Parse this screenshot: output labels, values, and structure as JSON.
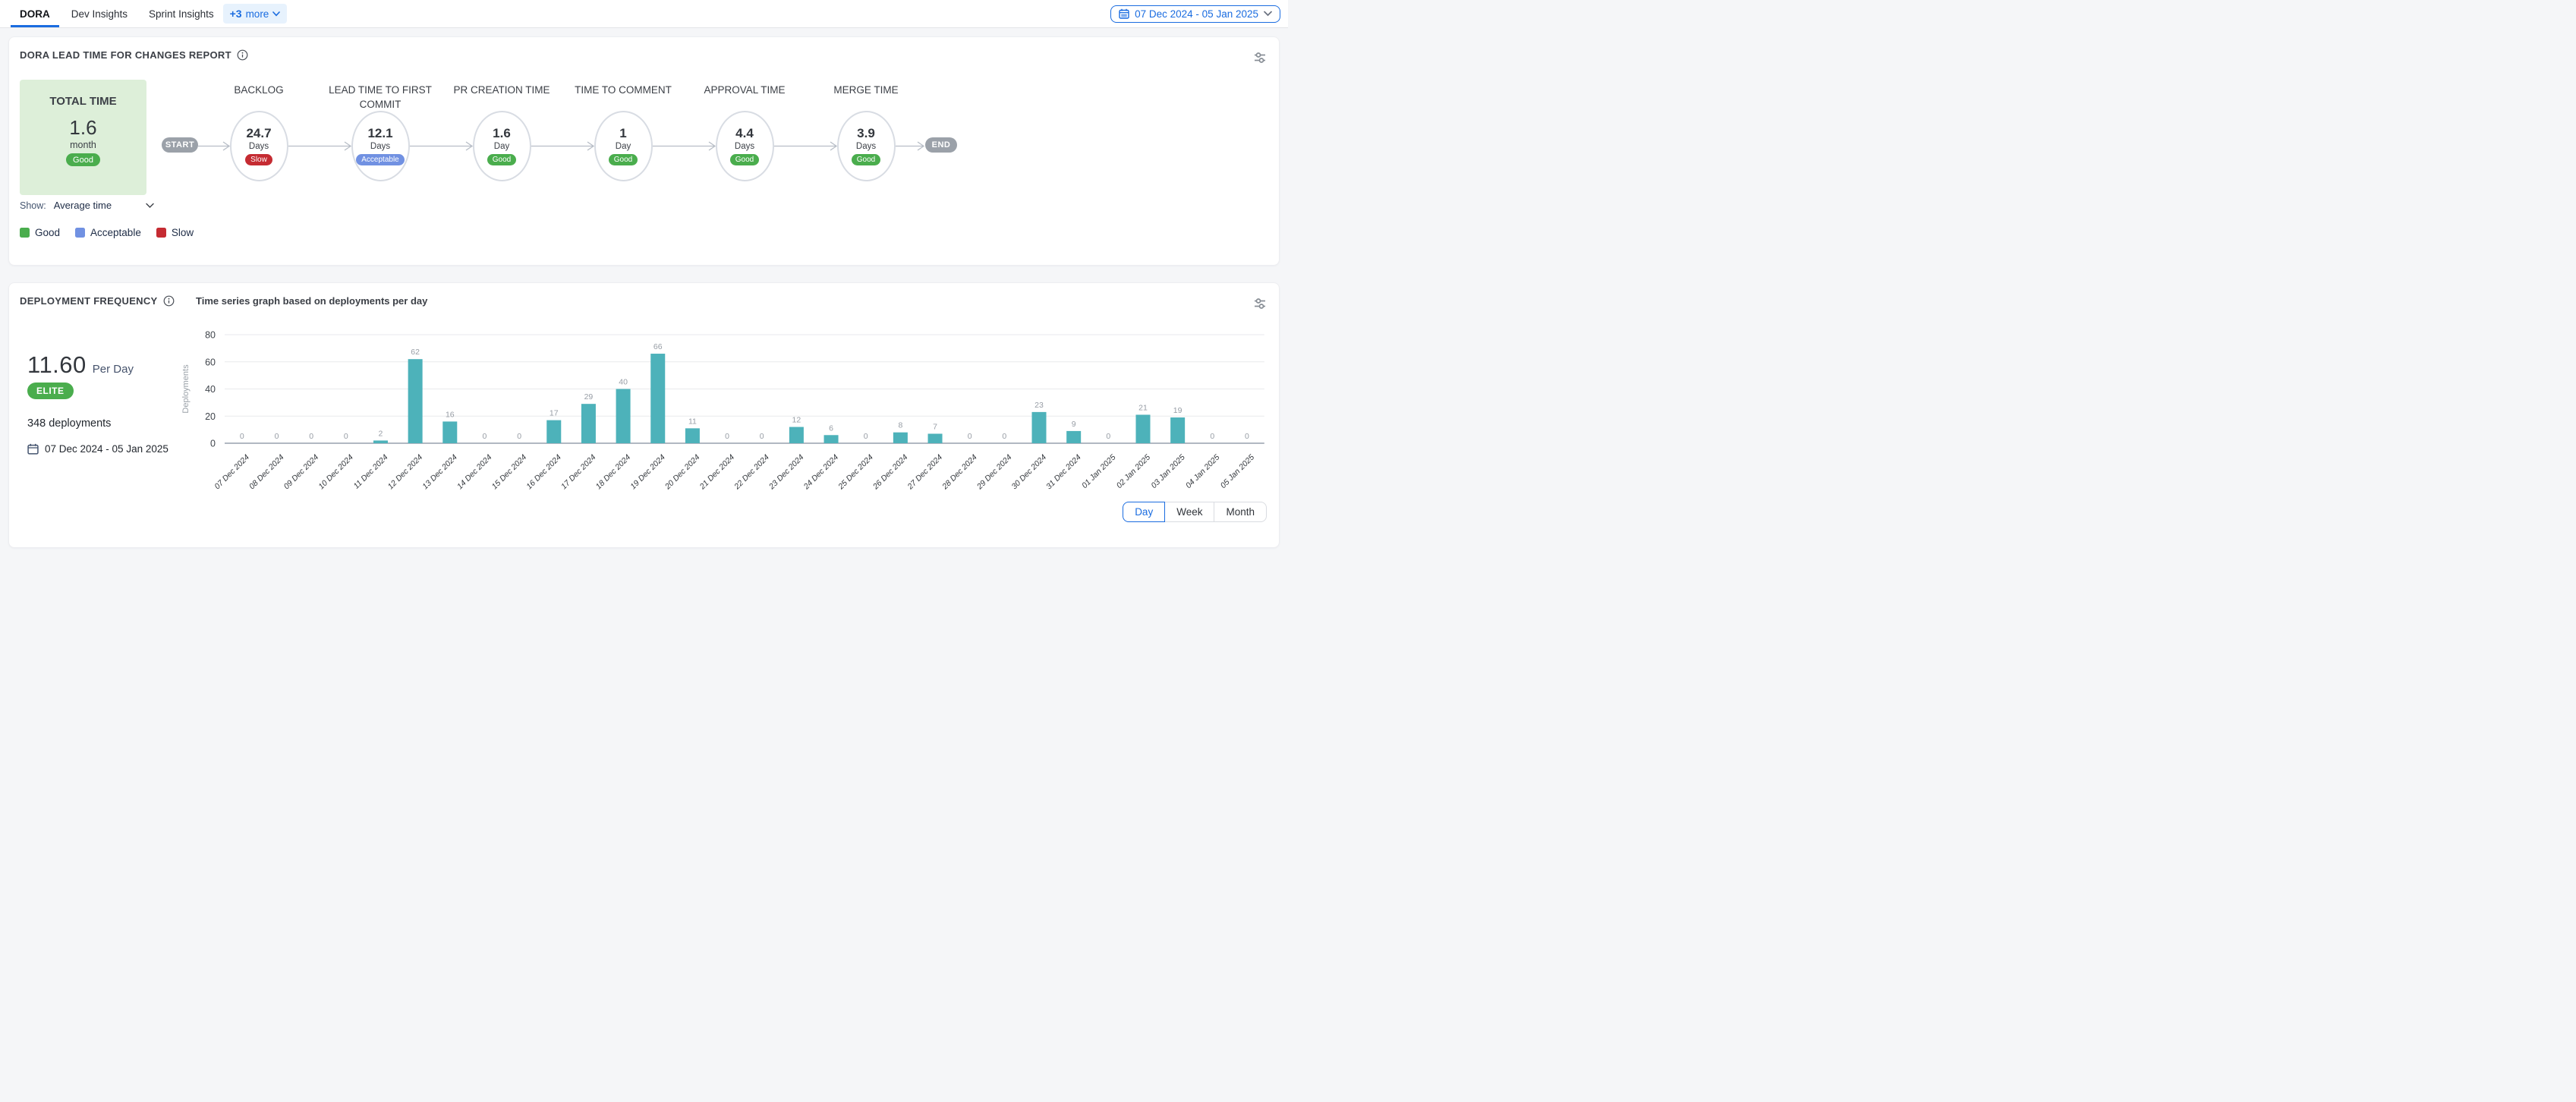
{
  "topbar": {
    "tabs": [
      {
        "label": "DORA",
        "active": true
      },
      {
        "label": "Dev Insights",
        "active": false
      },
      {
        "label": "Sprint Insights",
        "active": false
      }
    ],
    "more_count": "+3",
    "more_word": "more",
    "date_range": "07 Dec 2024 - 05 Jan 2025"
  },
  "lead_time_panel": {
    "title": "DORA LEAD TIME FOR CHANGES REPORT",
    "total": {
      "label": "TOTAL TIME",
      "value": "1.6",
      "unit": "month",
      "badge": "Good",
      "status": "good"
    },
    "start_label": "START",
    "end_label": "END",
    "show_label": "Show:",
    "show_value": "Average time",
    "stages": [
      {
        "title": "BACKLOG",
        "value": "24.7",
        "unit": "Days",
        "badge": "Slow",
        "status": "slow"
      },
      {
        "title": "LEAD TIME TO FIRST COMMIT",
        "value": "12.1",
        "unit": "Days",
        "badge": "Acceptable",
        "status": "acceptable"
      },
      {
        "title": "PR CREATION TIME",
        "value": "1.6",
        "unit": "Day",
        "badge": "Good",
        "status": "good"
      },
      {
        "title": "TIME TO COMMENT",
        "value": "1",
        "unit": "Day",
        "badge": "Good",
        "status": "good"
      },
      {
        "title": "APPROVAL TIME",
        "value": "4.4",
        "unit": "Days",
        "badge": "Good",
        "status": "good"
      },
      {
        "title": "MERGE TIME",
        "value": "3.9",
        "unit": "Days",
        "badge": "Good",
        "status": "good"
      }
    ],
    "status_colors": {
      "good": "#4aad4d",
      "acceptable": "#7191e2",
      "slow": "#c52b32"
    },
    "legend": [
      {
        "label": "Good",
        "status": "good"
      },
      {
        "label": "Acceptable",
        "status": "acceptable"
      },
      {
        "label": "Slow",
        "status": "slow"
      }
    ]
  },
  "deployment_panel": {
    "title": "DEPLOYMENT FREQUENCY",
    "subtitle": "Time series graph based on deployments per day",
    "rate_value": "11.60",
    "rate_unit": "Per Day",
    "tier_badge": "ELITE",
    "deployments_total": "348 deployments",
    "date_range": "07 Dec 2024 - 05 Jan 2025",
    "view_toggle": {
      "options": [
        "Day",
        "Week",
        "Month"
      ],
      "active": "Day"
    },
    "chart_data": {
      "type": "bar",
      "title": "Time series graph based on deployments per day",
      "ylabel": "Deployments",
      "ylim": [
        0,
        80
      ],
      "yticks": [
        0,
        20,
        40,
        60,
        80
      ],
      "bar_color": "#4db2ba",
      "categories": [
        "07 Dec 2024",
        "08 Dec 2024",
        "09 Dec 2024",
        "10 Dec 2024",
        "11 Dec 2024",
        "12 Dec 2024",
        "13 Dec 2024",
        "14 Dec 2024",
        "15 Dec 2024",
        "16 Dec 2024",
        "17 Dec 2024",
        "18 Dec 2024",
        "19 Dec 2024",
        "20 Dec 2024",
        "21 Dec 2024",
        "22 Dec 2024",
        "23 Dec 2024",
        "24 Dec 2024",
        "25 Dec 2024",
        "26 Dec 2024",
        "27 Dec 2024",
        "28 Dec 2024",
        "29 Dec 2024",
        "30 Dec 2024",
        "31 Dec 2024",
        "01 Jan 2025",
        "02 Jan 2025",
        "03 Jan 2025",
        "04 Jan 2025",
        "05 Jan 2025"
      ],
      "values": [
        0,
        0,
        0,
        0,
        2,
        62,
        16,
        0,
        0,
        17,
        29,
        40,
        66,
        11,
        0,
        0,
        12,
        6,
        0,
        8,
        7,
        0,
        0,
        23,
        9,
        0,
        21,
        19,
        0,
        0
      ]
    }
  }
}
